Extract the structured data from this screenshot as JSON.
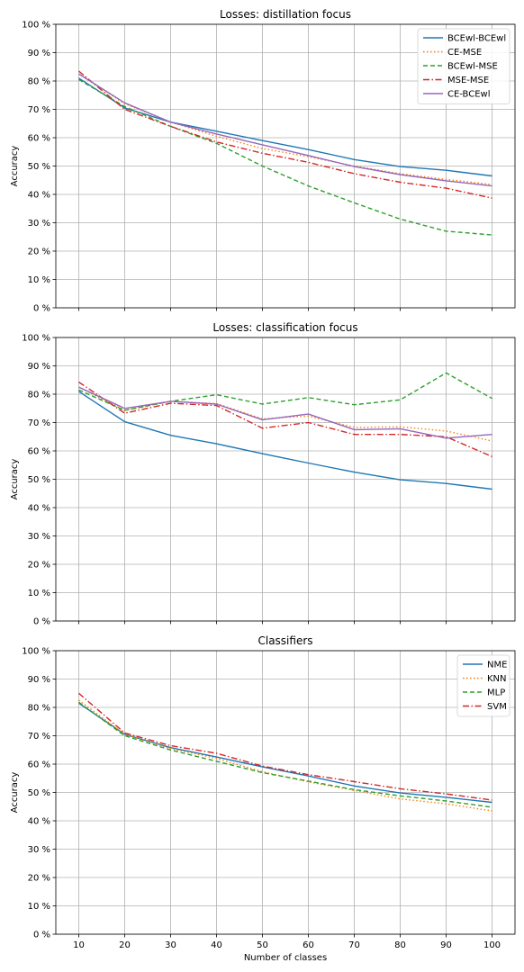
{
  "chart_data": [
    {
      "type": "line",
      "title": "Losses: distillation focus",
      "xlabel": "",
      "ylabel": "Accuracy",
      "x": [
        10,
        20,
        30,
        40,
        50,
        60,
        70,
        80,
        90,
        100
      ],
      "xlim": [
        5,
        105
      ],
      "ylim": [
        0,
        100
      ],
      "yticks": [
        0,
        10,
        20,
        30,
        40,
        50,
        60,
        70,
        80,
        90,
        100
      ],
      "ytick_labels": [
        "0 %",
        "10 %",
        "20 %",
        "30 %",
        "40 %",
        "50 %",
        "60 %",
        "70 %",
        "80 %",
        "90 %",
        "100 %"
      ],
      "xtick_labels": [],
      "grid": true,
      "legend": "top-right",
      "series": [
        {
          "name": "BCEwl-BCEwl",
          "color": "#1f77b4",
          "dash": "solid",
          "values": [
            81,
            70.5,
            65.5,
            62.3,
            59,
            55.8,
            52.3,
            49.8,
            48.5,
            46.5
          ]
        },
        {
          "name": "CE-MSE",
          "color": "#ff7f0e",
          "dash": "dotted",
          "values": [
            82.5,
            72,
            65.5,
            60.5,
            56.2,
            53.3,
            50,
            47.3,
            45.3,
            43.5
          ]
        },
        {
          "name": "BCEwl-MSE",
          "color": "#2ca02c",
          "dash": "dashed",
          "values": [
            80.5,
            71,
            64,
            58,
            50,
            43,
            37,
            31.3,
            27,
            25.7
          ]
        },
        {
          "name": "MSE-MSE",
          "color": "#d62728",
          "dash": "dashdot",
          "values": [
            83.5,
            70,
            64,
            58.5,
            54.5,
            51.3,
            47.3,
            44.3,
            42.2,
            38.7
          ]
        },
        {
          "name": "CE-BCEwl",
          "color": "#9467bd",
          "dash": "solid",
          "values": [
            82.5,
            72.3,
            65.5,
            61.3,
            57.5,
            53.7,
            49.8,
            47,
            44.8,
            43
          ]
        }
      ]
    },
    {
      "type": "line",
      "title": "Losses: classification focus",
      "xlabel": "",
      "ylabel": "Accuracy",
      "x": [
        10,
        20,
        30,
        40,
        50,
        60,
        70,
        80,
        90,
        100
      ],
      "xlim": [
        5,
        105
      ],
      "ylim": [
        0,
        100
      ],
      "yticks": [
        0,
        10,
        20,
        30,
        40,
        50,
        60,
        70,
        80,
        90,
        100
      ],
      "ytick_labels": [
        "0 %",
        "10 %",
        "20 %",
        "30 %",
        "40 %",
        "50 %",
        "60 %",
        "70 %",
        "80 %",
        "90 %",
        "100 %"
      ],
      "xtick_labels": [],
      "grid": true,
      "legend": "none",
      "series": [
        {
          "name": "BCEwl-BCEwl",
          "color": "#1f77b4",
          "dash": "solid",
          "values": [
            81,
            70.3,
            65.5,
            62.5,
            59,
            55.7,
            52.5,
            49.8,
            48.5,
            46.5
          ]
        },
        {
          "name": "CE-MSE",
          "color": "#ff7f0e",
          "dash": "dotted",
          "values": [
            82.5,
            74.3,
            77.5,
            76.7,
            71.3,
            72.3,
            68.3,
            68.5,
            67,
            63.5
          ]
        },
        {
          "name": "BCEwl-MSE",
          "color": "#2ca02c",
          "dash": "dashed",
          "values": [
            81.5,
            74.3,
            77.5,
            79.8,
            76.5,
            78.8,
            76.3,
            78,
            87.5,
            78.5
          ]
        },
        {
          "name": "MSE-MSE",
          "color": "#d62728",
          "dash": "dashdot",
          "values": [
            84.3,
            73.3,
            76.8,
            76,
            68,
            70,
            65.8,
            65.8,
            65,
            58
          ]
        },
        {
          "name": "CE-BCEwl",
          "color": "#9467bd",
          "dash": "solid",
          "values": [
            82.5,
            75,
            77.5,
            76.5,
            71,
            73,
            67.5,
            67.8,
            64.5,
            65.8
          ]
        }
      ]
    },
    {
      "type": "line",
      "title": "Classifiers",
      "xlabel": "Number of classes",
      "ylabel": "Accuracy",
      "x": [
        10,
        20,
        30,
        40,
        50,
        60,
        70,
        80,
        90,
        100
      ],
      "xlim": [
        5,
        105
      ],
      "ylim": [
        0,
        100
      ],
      "yticks": [
        0,
        10,
        20,
        30,
        40,
        50,
        60,
        70,
        80,
        90,
        100
      ],
      "ytick_labels": [
        "0 %",
        "10 %",
        "20 %",
        "30 %",
        "40 %",
        "50 %",
        "60 %",
        "70 %",
        "80 %",
        "90 %",
        "100 %"
      ],
      "xtick_labels": [
        "10",
        "20",
        "30",
        "40",
        "50",
        "60",
        "70",
        "80",
        "90",
        "100"
      ],
      "grid": true,
      "legend": "top-right",
      "series": [
        {
          "name": "NME",
          "color": "#1f77b4",
          "dash": "solid",
          "values": [
            81.5,
            70.5,
            65.8,
            62.5,
            59,
            55.8,
            52.3,
            49.8,
            48.3,
            46.5
          ]
        },
        {
          "name": "KNN",
          "color": "#ff7f0e",
          "dash": "dotted",
          "values": [
            82.5,
            70.5,
            65.5,
            62,
            57.3,
            53.7,
            50.7,
            47.7,
            46,
            43.5
          ]
        },
        {
          "name": "MLP",
          "color": "#2ca02c",
          "dash": "dashed",
          "values": [
            81.8,
            70,
            65,
            61,
            57,
            54,
            51,
            48.8,
            47,
            44.8
          ]
        },
        {
          "name": "SVM",
          "color": "#d62728",
          "dash": "dashdot",
          "values": [
            85,
            71,
            66.5,
            63.8,
            59.3,
            56.3,
            53.8,
            51.3,
            49.5,
            47.3
          ]
        }
      ]
    }
  ]
}
